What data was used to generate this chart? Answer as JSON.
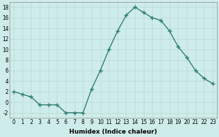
{
  "x": [
    0,
    1,
    2,
    3,
    4,
    5,
    6,
    7,
    8,
    9,
    10,
    11,
    12,
    13,
    14,
    15,
    16,
    17,
    18,
    19,
    20,
    21,
    22,
    23
  ],
  "y": [
    2,
    1.5,
    1,
    -0.5,
    -0.5,
    -0.5,
    -2,
    -2,
    -2,
    2.5,
    6,
    10,
    13.5,
    16.5,
    18,
    17,
    16,
    15.5,
    13.5,
    10.5,
    8.5,
    6,
    4.5,
    3.5
  ],
  "line_color": "#2e7d6e",
  "marker": "+",
  "marker_size": 4,
  "marker_linewidth": 1.0,
  "background_color": "#ceecea",
  "grid_color": "#b8d8d5",
  "xlabel": "Humidex (Indice chaleur)",
  "xlim": [
    -0.5,
    23.5
  ],
  "ylim": [
    -3,
    19
  ],
  "yticks": [
    -2,
    0,
    2,
    4,
    6,
    8,
    10,
    12,
    14,
    16,
    18
  ],
  "xticks": [
    0,
    1,
    2,
    3,
    4,
    5,
    6,
    7,
    8,
    9,
    10,
    11,
    12,
    13,
    14,
    15,
    16,
    17,
    18,
    19,
    20,
    21,
    22,
    23
  ],
  "xlabel_fontsize": 6.5,
  "tick_fontsize": 5.5,
  "line_width": 1.0
}
